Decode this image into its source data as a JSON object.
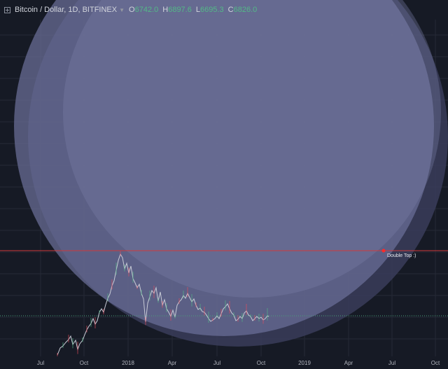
{
  "header": {
    "symbol_title": "Bitcoin / Dollar, 1D, BITFINEX",
    "ohlc": [
      {
        "key": "O",
        "value": "6742.0"
      },
      {
        "key": "H",
        "value": "6897.6"
      },
      {
        "key": "L",
        "value": "6695.3"
      },
      {
        "key": "C",
        "value": "6826.0"
      }
    ]
  },
  "chart_data": {
    "type": "line",
    "x_axis_ticks": [
      "Jul",
      "Oct",
      "2018",
      "Apr",
      "Jul",
      "Oct",
      "2019",
      "Apr",
      "Jul",
      "Oct"
    ],
    "annotations": [
      {
        "label": "Double Top :)"
      }
    ],
    "colors": {
      "price_line": "#c8cbd6",
      "resistance_line": "#d23a3a",
      "marker": "#ff2a2a",
      "circle_fill": "#6b6f99",
      "dotted_support": "#4aa37a"
    }
  }
}
